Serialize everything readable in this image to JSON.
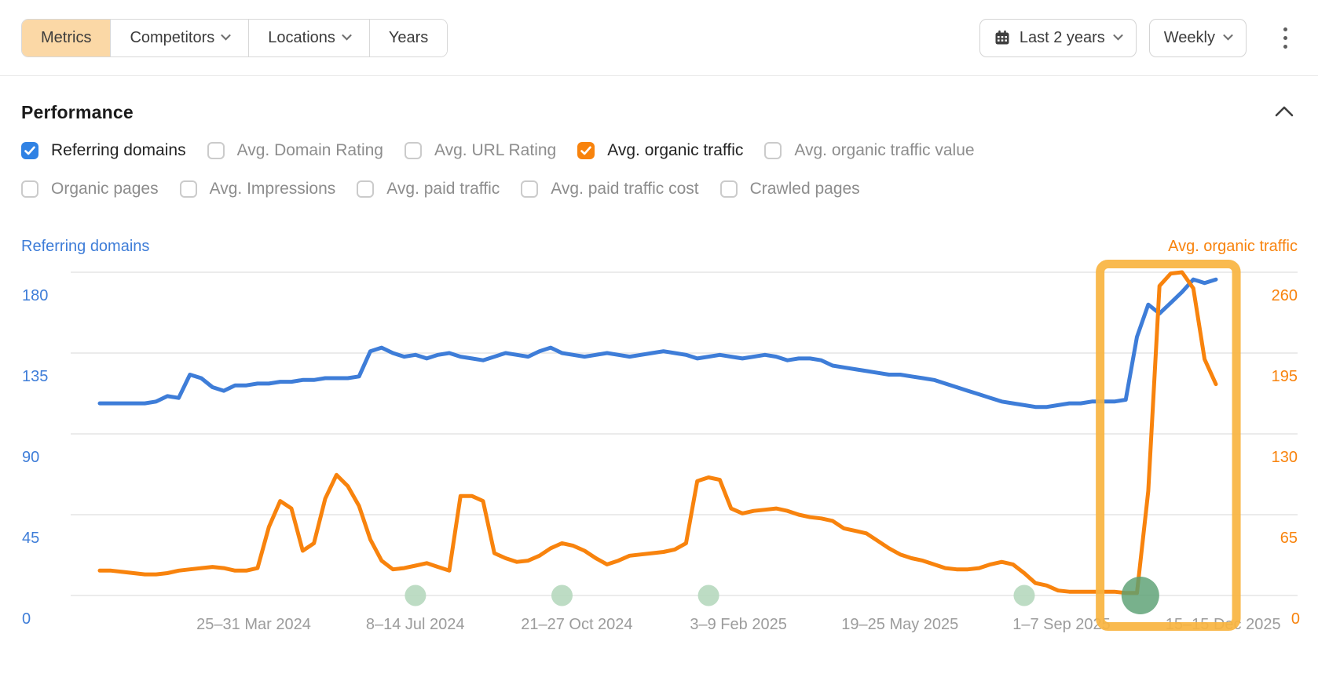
{
  "toolbar": {
    "tabs": [
      {
        "label": "Metrics",
        "active": true,
        "has_chevron": false
      },
      {
        "label": "Competitors",
        "active": false,
        "has_chevron": true
      },
      {
        "label": "Locations",
        "active": false,
        "has_chevron": true
      },
      {
        "label": "Years",
        "active": false,
        "has_chevron": false
      }
    ],
    "date_range_button": {
      "label": "Last 2 years",
      "icon": "calendar"
    },
    "granularity_button": {
      "label": "Weekly"
    },
    "more_menu_icon": "kebab-vertical",
    "active_tab_bg": "#fbd8a6"
  },
  "performance": {
    "title": "Performance",
    "collapse_icon": "chevron-up",
    "metric_toggles_row1": [
      {
        "label": "Referring domains",
        "checked": true,
        "accent": "#3082e4"
      },
      {
        "label": "Avg. Domain Rating",
        "checked": false
      },
      {
        "label": "Avg. URL Rating",
        "checked": false
      },
      {
        "label": "Avg. organic traffic",
        "checked": true,
        "accent": "#f8830d"
      },
      {
        "label": "Avg. organic traffic value",
        "checked": false
      }
    ],
    "metric_toggles_row2": [
      {
        "label": "Organic pages",
        "checked": false
      },
      {
        "label": "Avg. Impressions",
        "checked": false
      },
      {
        "label": "Avg. paid traffic",
        "checked": false
      },
      {
        "label": "Avg. paid traffic cost",
        "checked": false
      },
      {
        "label": "Crawled pages",
        "checked": false
      }
    ]
  },
  "chart_data": {
    "type": "line",
    "grid": true,
    "left_axis": {
      "title": "Referring domains",
      "color": "#3e7dd8",
      "range": [
        0,
        180
      ],
      "ticks": [
        0,
        45,
        90,
        135,
        180
      ]
    },
    "right_axis": {
      "title": "Avg. organic traffic",
      "color": "#f8830d",
      "range": [
        0,
        260
      ],
      "ticks": [
        0,
        65,
        130,
        195,
        260
      ]
    },
    "x_tick_labels": [
      "25–31 Mar 2024",
      "8–14 Jul 2024",
      "21–27 Oct 2024",
      "3–9 Feb 2025",
      "19–25 May 2025",
      "1–7 Sep 2025",
      "15–15 Dec 2025"
    ],
    "series": [
      {
        "name": "Referring domains",
        "axis": "left",
        "color": "#3e7dd8",
        "values": [
          107,
          107,
          107,
          107,
          107,
          108,
          111,
          110,
          123,
          121,
          116,
          114,
          117,
          117,
          118,
          118,
          119,
          119,
          120,
          120,
          121,
          121,
          121,
          122,
          136,
          138,
          135,
          133,
          134,
          132,
          134,
          135,
          133,
          132,
          131,
          133,
          135,
          134,
          133,
          136,
          138,
          135,
          134,
          133,
          134,
          135,
          134,
          133,
          134,
          135,
          136,
          135,
          134,
          132,
          133,
          134,
          133,
          132,
          133,
          134,
          133,
          131,
          132,
          132,
          131,
          128,
          127,
          126,
          125,
          124,
          123,
          123,
          122,
          121,
          120,
          118,
          116,
          114,
          112,
          110,
          108,
          107,
          106,
          105,
          105,
          106,
          107,
          107,
          108,
          108,
          108,
          109,
          144,
          162,
          157,
          163,
          169,
          176,
          174,
          176
        ]
      },
      {
        "name": "Avg. organic traffic",
        "axis": "right",
        "color": "#f8830d",
        "values": [
          20,
          20,
          19,
          18,
          17,
          17,
          18,
          20,
          21,
          22,
          23,
          22,
          20,
          20,
          22,
          55,
          76,
          70,
          36,
          42,
          78,
          97,
          88,
          72,
          45,
          28,
          21,
          22,
          24,
          26,
          23,
          20,
          80,
          80,
          76,
          34,
          30,
          27,
          28,
          32,
          38,
          42,
          40,
          36,
          30,
          25,
          28,
          32,
          33,
          34,
          35,
          37,
          42,
          92,
          95,
          93,
          70,
          66,
          68,
          69,
          70,
          68,
          65,
          63,
          62,
          60,
          54,
          52,
          50,
          44,
          38,
          33,
          30,
          28,
          25,
          22,
          21,
          21,
          22,
          25,
          27,
          25,
          18,
          10,
          8,
          4,
          3,
          3,
          3,
          3,
          3,
          2,
          2,
          84,
          249,
          259,
          260,
          247,
          190,
          170
        ]
      }
    ],
    "event_markers": {
      "color": "#b6d8be",
      "indices": [
        28,
        41,
        54,
        82
      ]
    },
    "highlight_event": {
      "color": "#5aa073",
      "index": 92.3
    },
    "highlight_box": {
      "color": "#f9b440",
      "from_index": 88.35,
      "to_index": 101.2
    }
  }
}
